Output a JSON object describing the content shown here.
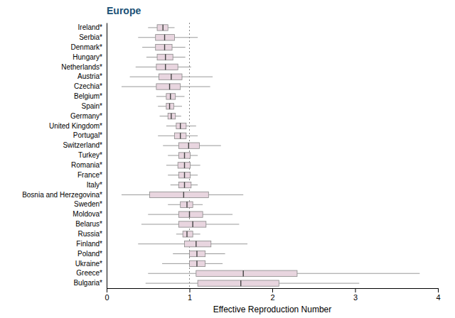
{
  "chart_data": {
    "type": "box",
    "orientation": "horizontal",
    "title": "Europe",
    "xlabel": "Effective Reproduction Number",
    "xlim": [
      0,
      4
    ],
    "xticks": [
      0,
      1,
      2,
      3,
      4
    ],
    "reference_line": 1.0,
    "color": "#e8d5df",
    "categories": [
      "Ireland*",
      "Serbia*",
      "Denmark*",
      "Hungary*",
      "Netherlands*",
      "Austria*",
      "Czechia*",
      "Belgium*",
      "Spain*",
      "Germany*",
      "United Kingdom*",
      "Portugal*",
      "Switzerland*",
      "Turkey*",
      "Romania*",
      "France*",
      "Italy*",
      "Bosnia and Herzegovina*",
      "Sweden*",
      "Moldova*",
      "Belarus*",
      "Russia*",
      "Finland*",
      "Poland*",
      "Ukraine*",
      "Greece*",
      "Bulgaria*"
    ],
    "boxes": [
      {
        "whislo": 0.5,
        "q1": 0.61,
        "med": 0.68,
        "q3": 0.74,
        "whishi": 0.82
      },
      {
        "whislo": 0.38,
        "q1": 0.59,
        "med": 0.7,
        "q3": 0.82,
        "whishi": 1.1
      },
      {
        "whislo": 0.43,
        "q1": 0.59,
        "med": 0.7,
        "q3": 0.79,
        "whishi": 0.95
      },
      {
        "whislo": 0.48,
        "q1": 0.61,
        "med": 0.71,
        "q3": 0.8,
        "whishi": 0.95
      },
      {
        "whislo": 0.35,
        "q1": 0.6,
        "med": 0.71,
        "q3": 0.86,
        "whishi": 1.02
      },
      {
        "whislo": 0.28,
        "q1": 0.63,
        "med": 0.78,
        "q3": 0.91,
        "whishi": 1.28
      },
      {
        "whislo": 0.18,
        "q1": 0.6,
        "med": 0.76,
        "q3": 0.89,
        "whishi": 1.25
      },
      {
        "whislo": 0.6,
        "q1": 0.72,
        "med": 0.77,
        "q3": 0.83,
        "whishi": 0.94
      },
      {
        "whislo": 0.62,
        "q1": 0.72,
        "med": 0.76,
        "q3": 0.81,
        "whishi": 0.91
      },
      {
        "whislo": 0.64,
        "q1": 0.74,
        "med": 0.78,
        "q3": 0.83,
        "whishi": 0.9
      },
      {
        "whislo": 0.72,
        "q1": 0.84,
        "med": 0.89,
        "q3": 0.96,
        "whishi": 1.08
      },
      {
        "whislo": 0.62,
        "q1": 0.82,
        "med": 0.89,
        "q3": 0.96,
        "whishi": 1.1
      },
      {
        "whislo": 0.68,
        "q1": 0.87,
        "med": 0.99,
        "q3": 1.12,
        "whishi": 1.38
      },
      {
        "whislo": 0.74,
        "q1": 0.87,
        "med": 0.94,
        "q3": 1.01,
        "whishi": 1.1
      },
      {
        "whislo": 0.72,
        "q1": 0.86,
        "med": 0.94,
        "q3": 1.01,
        "whishi": 1.13
      },
      {
        "whislo": 0.74,
        "q1": 0.87,
        "med": 0.94,
        "q3": 1.01,
        "whishi": 1.1
      },
      {
        "whislo": 0.77,
        "q1": 0.87,
        "med": 0.94,
        "q3": 1.02,
        "whishi": 1.1
      },
      {
        "whislo": 0.18,
        "q1": 0.52,
        "med": 0.93,
        "q3": 1.23,
        "whishi": 1.65
      },
      {
        "whislo": 0.74,
        "q1": 0.89,
        "med": 0.97,
        "q3": 1.04,
        "whishi": 1.16
      },
      {
        "whislo": 0.5,
        "q1": 0.87,
        "med": 1.0,
        "q3": 1.16,
        "whishi": 1.52
      },
      {
        "whislo": 0.42,
        "q1": 0.87,
        "med": 1.04,
        "q3": 1.2,
        "whishi": 1.6
      },
      {
        "whislo": 0.84,
        "q1": 0.92,
        "med": 0.97,
        "q3": 1.04,
        "whishi": 1.13
      },
      {
        "whislo": 0.38,
        "q1": 0.94,
        "med": 1.08,
        "q3": 1.26,
        "whishi": 1.7
      },
      {
        "whislo": 0.8,
        "q1": 1.0,
        "med": 1.09,
        "q3": 1.19,
        "whishi": 1.43
      },
      {
        "whislo": 0.67,
        "q1": 1.0,
        "med": 1.09,
        "q3": 1.19,
        "whishi": 1.4
      },
      {
        "whislo": 0.5,
        "q1": 1.08,
        "med": 1.65,
        "q3": 2.3,
        "whishi": 3.78
      },
      {
        "whislo": 0.47,
        "q1": 1.1,
        "med": 1.62,
        "q3": 2.08,
        "whishi": 3.05
      }
    ]
  }
}
